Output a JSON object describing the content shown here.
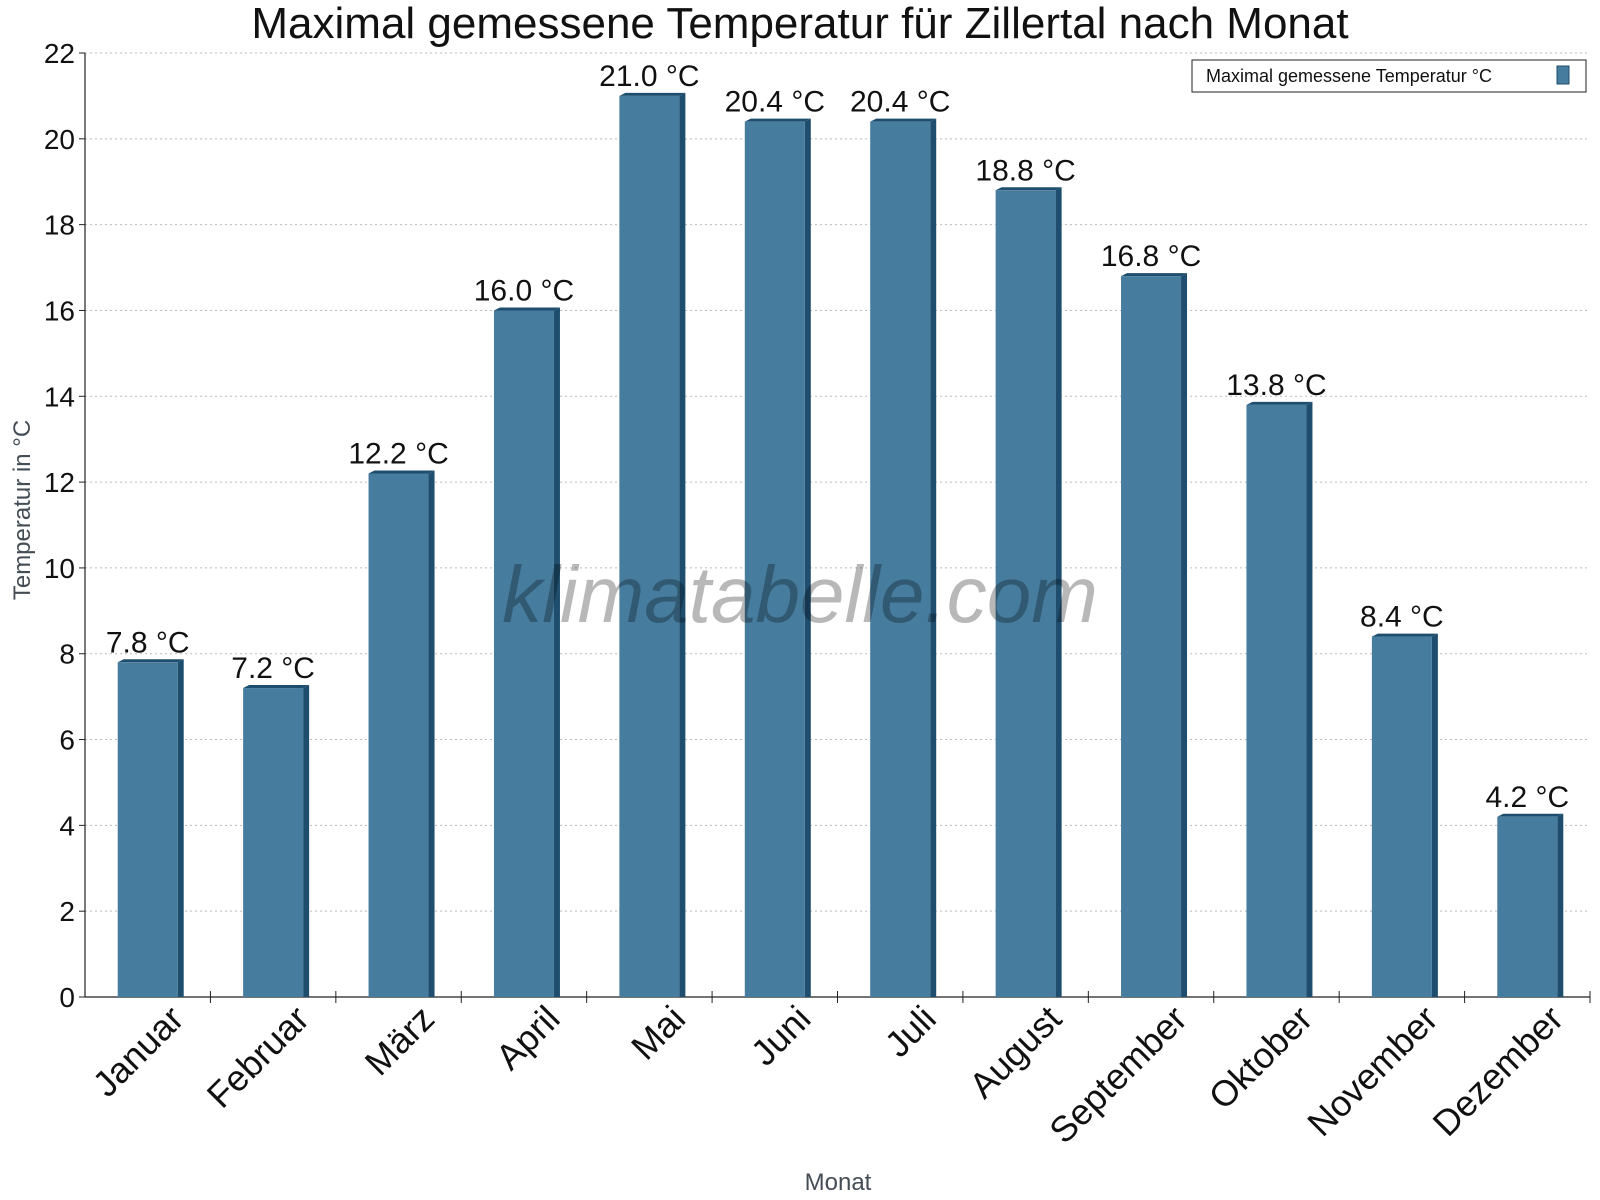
{
  "chart_data": {
    "type": "bar",
    "title": "Maximal gemessene Temperatur für Zillertal nach Monat",
    "xlabel": "Monat",
    "ylabel": "Temperatur in °C",
    "categories": [
      "Januar",
      "Februar",
      "März",
      "April",
      "Mai",
      "Juni",
      "Juli",
      "August",
      "September",
      "Oktober",
      "November",
      "Dezember"
    ],
    "series": [
      {
        "name": "Maximal gemessene Temperatur °C",
        "values": [
          7.8,
          7.2,
          12.2,
          16.0,
          21.0,
          20.4,
          20.4,
          18.8,
          16.8,
          13.8,
          8.4,
          4.2
        ],
        "labels": [
          "7.8 °C",
          "7.2 °C",
          "12.2 °C",
          "16.0 °C",
          "21.0 °C",
          "20.4 °C",
          "20.4 °C",
          "18.8 °C",
          "16.8 °C",
          "13.8 °C",
          "8.4 °C",
          "4.2 °C"
        ],
        "color": "#467c9e",
        "side_color": "#1e4d6e"
      }
    ],
    "ylim": [
      0,
      22
    ],
    "yticks": [
      "0",
      "2",
      "4",
      "6",
      "8",
      "10",
      "12",
      "14",
      "16",
      "18",
      "20",
      "22"
    ],
    "grid": true,
    "legend_position": "top-right"
  },
  "watermark": "klimatabelle.com"
}
